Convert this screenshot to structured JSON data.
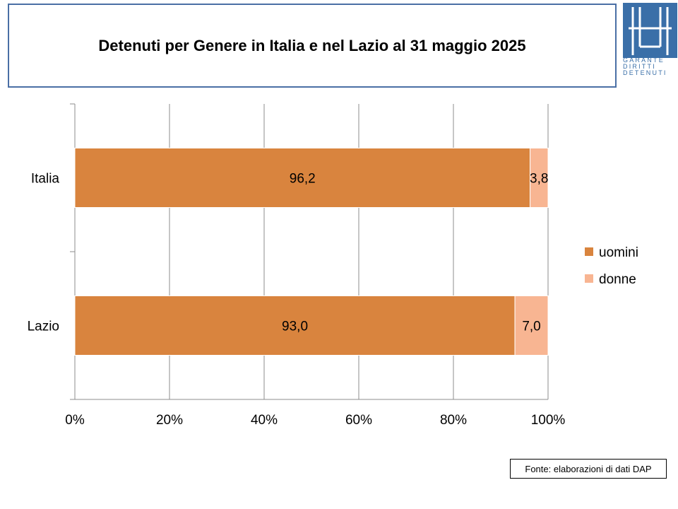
{
  "header": {
    "title": "Detenuti per Genere in Italia e nel Lazio al 31 maggio 2025"
  },
  "logo": {
    "line1": "GARANTE",
    "line2": "DIRITTI",
    "line3": "DETENUTI",
    "color": "#3a6fa8"
  },
  "source": {
    "text": "Fonte: elaborazioni di dati DAP"
  },
  "chart_data": {
    "type": "bar",
    "orientation": "horizontal",
    "stacked": "percent",
    "categories": [
      "Italia",
      "Lazio"
    ],
    "series": [
      {
        "name": "uomini",
        "values": [
          96.2,
          93.0
        ],
        "labels": [
          "96,2",
          "93,0"
        ],
        "color": "#d9843e"
      },
      {
        "name": "donne",
        "values": [
          3.8,
          7.0
        ],
        "labels": [
          "3,8",
          "7,0"
        ],
        "color": "#f8b592"
      }
    ],
    "xlim": [
      0,
      100
    ],
    "xticks": [
      "0%",
      "20%",
      "40%",
      "60%",
      "80%",
      "100%"
    ],
    "grid": true,
    "legend": "right"
  }
}
